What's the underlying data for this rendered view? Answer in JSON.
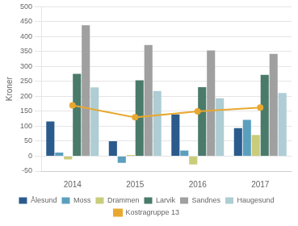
{
  "chart_data": {
    "type": "bar",
    "categories": [
      2014,
      2015,
      2016,
      2017
    ],
    "series": [
      {
        "name": "Ålesund",
        "color": "#2b5b8c",
        "values": [
          116.1,
          49.8,
          139.5,
          93.8
        ]
      },
      {
        "name": "Moss",
        "color": "#5b9fbe",
        "values": [
          11.8,
          -22.4,
          19.0,
          121.6
        ]
      },
      {
        "name": "Drammen",
        "color": "#c9cc7a",
        "values": [
          -10.7,
          4.0,
          -27.4,
          70.7
        ]
      },
      {
        "name": "Larvik",
        "color": "#4a7a6a",
        "values": [
          275.2,
          254.1,
          231.0,
          271.9
        ]
      },
      {
        "name": "Sandnes",
        "color": "#a0a0a0",
        "values": [
          438.5,
          371.8,
          353.6,
          342.2
        ]
      },
      {
        "name": "Haugesund",
        "color": "#aecdd4",
        "values": [
          230.0,
          218.3,
          193.6,
          211.6
        ]
      },
      {
        "name": "Kostragruppe 13",
        "color": "#e8a830",
        "type": "line",
        "marker": "circle",
        "values": [
          170.0,
          130.0,
          150.0,
          163.0
        ]
      }
    ],
    "ylabel": "Kroner",
    "ylim": [
      -50,
      500
    ],
    "yticks": [
      -50,
      0,
      50,
      100,
      150,
      200,
      250,
      300,
      350,
      400,
      450,
      500
    ],
    "grid": true,
    "legend": "bottom"
  }
}
